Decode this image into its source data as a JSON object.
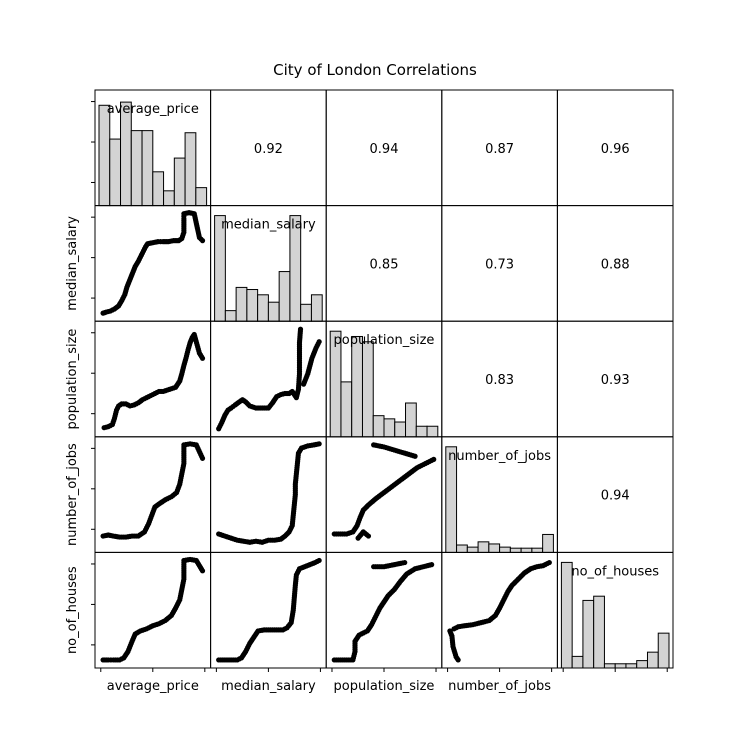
{
  "chart_data": {
    "type": "scatter_matrix",
    "title": "City of London Correlations",
    "variables": [
      "average_price",
      "median_salary",
      "population_size",
      "number_of_jobs",
      "no_of_houses"
    ],
    "correlations": [
      {
        "row": 0,
        "col": 1,
        "value": "0.92"
      },
      {
        "row": 0,
        "col": 2,
        "value": "0.94"
      },
      {
        "row": 0,
        "col": 3,
        "value": "0.87"
      },
      {
        "row": 0,
        "col": 4,
        "value": "0.96"
      },
      {
        "row": 1,
        "col": 2,
        "value": "0.85"
      },
      {
        "row": 1,
        "col": 3,
        "value": "0.73"
      },
      {
        "row": 1,
        "col": 4,
        "value": "0.88"
      },
      {
        "row": 2,
        "col": 3,
        "value": "0.83"
      },
      {
        "row": 2,
        "col": 4,
        "value": "0.93"
      },
      {
        "row": 3,
        "col": 4,
        "value": "0.94"
      }
    ],
    "histograms": {
      "average_price": [
        0.95,
        0.63,
        0.98,
        0.71,
        0.71,
        0.32,
        0.14,
        0.45,
        0.69,
        0.17
      ],
      "median_salary": [
        1.0,
        0.1,
        0.32,
        0.3,
        0.25,
        0.18,
        0.47,
        1.0,
        0.16,
        0.25
      ],
      "population_size": [
        1.0,
        0.52,
        0.95,
        0.9,
        0.2,
        0.17,
        0.14,
        0.32,
        0.1,
        0.1
      ],
      "number_of_jobs": [
        1.0,
        0.07,
        0.05,
        0.1,
        0.08,
        0.05,
        0.04,
        0.04,
        0.04,
        0.17
      ],
      "no_of_houses": [
        1.0,
        0.11,
        0.64,
        0.68,
        0.04,
        0.04,
        0.04,
        0.07,
        0.15,
        0.33
      ]
    },
    "scatter": {
      "median_salary_vs_average_price": [
        [
          0.02,
          0.02
        ],
        [
          0.05,
          0.03
        ],
        [
          0.09,
          0.04
        ],
        [
          0.13,
          0.06
        ],
        [
          0.17,
          0.09
        ],
        [
          0.2,
          0.14
        ],
        [
          0.23,
          0.2
        ],
        [
          0.25,
          0.27
        ],
        [
          0.27,
          0.32
        ],
        [
          0.29,
          0.37
        ],
        [
          0.31,
          0.42
        ],
        [
          0.33,
          0.47
        ],
        [
          0.36,
          0.52
        ],
        [
          0.39,
          0.58
        ],
        [
          0.41,
          0.62
        ],
        [
          0.43,
          0.66
        ],
        [
          0.45,
          0.69
        ],
        [
          0.5,
          0.7
        ],
        [
          0.55,
          0.71
        ],
        [
          0.6,
          0.71
        ],
        [
          0.65,
          0.71
        ],
        [
          0.7,
          0.72
        ],
        [
          0.75,
          0.72
        ],
        [
          0.78,
          0.74
        ],
        [
          0.8,
          0.8
        ],
        [
          0.8,
          0.86
        ],
        [
          0.8,
          0.93
        ],
        [
          0.8,
          0.98
        ],
        [
          0.85,
          0.99
        ],
        [
          0.9,
          0.98
        ],
        [
          0.95,
          0.75
        ],
        [
          0.98,
          0.72
        ]
      ],
      "population_size_vs_average_price": [
        [
          0.03,
          0.03
        ],
        [
          0.07,
          0.04
        ],
        [
          0.11,
          0.06
        ],
        [
          0.13,
          0.12
        ],
        [
          0.15,
          0.2
        ],
        [
          0.17,
          0.24
        ],
        [
          0.2,
          0.26
        ],
        [
          0.24,
          0.26
        ],
        [
          0.28,
          0.24
        ],
        [
          0.32,
          0.25
        ],
        [
          0.36,
          0.27
        ],
        [
          0.4,
          0.3
        ],
        [
          0.44,
          0.32
        ],
        [
          0.48,
          0.34
        ],
        [
          0.52,
          0.36
        ],
        [
          0.56,
          0.38
        ],
        [
          0.6,
          0.38
        ],
        [
          0.66,
          0.4
        ],
        [
          0.72,
          0.42
        ],
        [
          0.76,
          0.48
        ],
        [
          0.78,
          0.55
        ],
        [
          0.8,
          0.63
        ],
        [
          0.82,
          0.7
        ],
        [
          0.84,
          0.78
        ],
        [
          0.86,
          0.85
        ],
        [
          0.88,
          0.9
        ],
        [
          0.9,
          0.93
        ],
        [
          0.95,
          0.75
        ],
        [
          0.98,
          0.7
        ]
      ],
      "number_of_jobs_vs_average_price": [
        [
          0.02,
          0.1
        ],
        [
          0.07,
          0.11
        ],
        [
          0.12,
          0.1
        ],
        [
          0.18,
          0.09
        ],
        [
          0.24,
          0.09
        ],
        [
          0.3,
          0.1
        ],
        [
          0.36,
          0.1
        ],
        [
          0.42,
          0.14
        ],
        [
          0.46,
          0.22
        ],
        [
          0.49,
          0.3
        ],
        [
          0.52,
          0.38
        ],
        [
          0.56,
          0.41
        ],
        [
          0.62,
          0.45
        ],
        [
          0.68,
          0.48
        ],
        [
          0.73,
          0.52
        ],
        [
          0.76,
          0.6
        ],
        [
          0.78,
          0.7
        ],
        [
          0.8,
          0.8
        ],
        [
          0.8,
          0.9
        ],
        [
          0.8,
          0.98
        ],
        [
          0.86,
          0.99
        ],
        [
          0.92,
          0.98
        ],
        [
          0.98,
          0.85
        ]
      ],
      "no_of_houses_vs_average_price": [
        [
          0.02,
          0.02
        ],
        [
          0.07,
          0.02
        ],
        [
          0.12,
          0.02
        ],
        [
          0.18,
          0.02
        ],
        [
          0.22,
          0.04
        ],
        [
          0.26,
          0.1
        ],
        [
          0.3,
          0.2
        ],
        [
          0.33,
          0.27
        ],
        [
          0.38,
          0.3
        ],
        [
          0.44,
          0.32
        ],
        [
          0.5,
          0.35
        ],
        [
          0.56,
          0.37
        ],
        [
          0.62,
          0.4
        ],
        [
          0.68,
          0.45
        ],
        [
          0.72,
          0.52
        ],
        [
          0.76,
          0.6
        ],
        [
          0.78,
          0.7
        ],
        [
          0.8,
          0.8
        ],
        [
          0.8,
          0.9
        ],
        [
          0.8,
          0.98
        ],
        [
          0.86,
          0.99
        ],
        [
          0.92,
          0.98
        ],
        [
          0.98,
          0.88
        ]
      ],
      "population_size_vs_median_salary": [
        [
          0.02,
          0.02
        ],
        [
          0.05,
          0.08
        ],
        [
          0.08,
          0.15
        ],
        [
          0.11,
          0.2
        ],
        [
          0.14,
          0.22
        ],
        [
          0.18,
          0.25
        ],
        [
          0.22,
          0.28
        ],
        [
          0.25,
          0.3
        ],
        [
          0.28,
          0.28
        ],
        [
          0.32,
          0.24
        ],
        [
          0.38,
          0.22
        ],
        [
          0.44,
          0.22
        ],
        [
          0.5,
          0.22
        ],
        [
          0.54,
          0.27
        ],
        [
          0.58,
          0.33
        ],
        [
          0.62,
          0.35
        ],
        [
          0.66,
          0.36
        ],
        [
          0.7,
          0.36
        ],
        [
          0.73,
          0.38
        ],
        [
          0.75,
          0.35
        ],
        [
          0.77,
          0.32
        ],
        [
          0.79,
          0.4
        ],
        [
          0.8,
          0.55
        ],
        [
          0.8,
          0.7
        ],
        [
          0.8,
          0.85
        ],
        [
          0.81,
          0.98
        ],
        [
          0.84,
          0.45
        ],
        [
          0.88,
          0.55
        ],
        [
          0.92,
          0.7
        ],
        [
          0.96,
          0.8
        ],
        [
          0.99,
          0.86
        ]
      ],
      "number_of_jobs_vs_median_salary": [
        [
          0.02,
          0.12
        ],
        [
          0.08,
          0.1
        ],
        [
          0.14,
          0.08
        ],
        [
          0.2,
          0.06
        ],
        [
          0.26,
          0.05
        ],
        [
          0.32,
          0.04
        ],
        [
          0.38,
          0.05
        ],
        [
          0.44,
          0.04
        ],
        [
          0.5,
          0.06
        ],
        [
          0.56,
          0.06
        ],
        [
          0.62,
          0.07
        ],
        [
          0.66,
          0.1
        ],
        [
          0.7,
          0.14
        ],
        [
          0.73,
          0.2
        ],
        [
          0.74,
          0.3
        ],
        [
          0.75,
          0.4
        ],
        [
          0.76,
          0.5
        ],
        [
          0.76,
          0.6
        ],
        [
          0.77,
          0.7
        ],
        [
          0.78,
          0.8
        ],
        [
          0.79,
          0.9
        ],
        [
          0.82,
          0.95
        ],
        [
          0.88,
          0.97
        ],
        [
          0.94,
          0.98
        ],
        [
          0.99,
          0.99
        ]
      ],
      "no_of_houses_vs_median_salary": [
        [
          0.02,
          0.02
        ],
        [
          0.08,
          0.02
        ],
        [
          0.14,
          0.02
        ],
        [
          0.2,
          0.02
        ],
        [
          0.24,
          0.04
        ],
        [
          0.28,
          0.1
        ],
        [
          0.32,
          0.18
        ],
        [
          0.36,
          0.24
        ],
        [
          0.4,
          0.3
        ],
        [
          0.46,
          0.31
        ],
        [
          0.52,
          0.31
        ],
        [
          0.58,
          0.31
        ],
        [
          0.64,
          0.31
        ],
        [
          0.68,
          0.33
        ],
        [
          0.72,
          0.38
        ],
        [
          0.74,
          0.5
        ],
        [
          0.75,
          0.62
        ],
        [
          0.76,
          0.74
        ],
        [
          0.77,
          0.84
        ],
        [
          0.8,
          0.9
        ],
        [
          0.85,
          0.92
        ],
        [
          0.9,
          0.94
        ],
        [
          0.95,
          0.96
        ],
        [
          0.99,
          0.98
        ]
      ],
      "number_of_jobs_vs_population_size": [
        [
          0.02,
          0.12
        ],
        [
          0.08,
          0.12
        ],
        [
          0.14,
          0.12
        ],
        [
          0.2,
          0.14
        ],
        [
          0.24,
          0.2
        ],
        [
          0.27,
          0.28
        ],
        [
          0.3,
          0.35
        ],
        [
          0.35,
          0.4
        ],
        [
          0.42,
          0.46
        ],
        [
          0.5,
          0.52
        ],
        [
          0.58,
          0.58
        ],
        [
          0.66,
          0.64
        ],
        [
          0.74,
          0.7
        ],
        [
          0.82,
          0.76
        ],
        [
          0.9,
          0.8
        ],
        [
          0.98,
          0.84
        ],
        [
          0.4,
          0.98
        ],
        [
          0.5,
          0.96
        ],
        [
          0.6,
          0.93
        ],
        [
          0.7,
          0.9
        ],
        [
          0.8,
          0.87
        ],
        [
          0.35,
          0.1
        ],
        [
          0.3,
          0.14
        ],
        [
          0.25,
          0.08
        ]
      ],
      "no_of_houses_vs_population_size": [
        [
          0.02,
          0.02
        ],
        [
          0.08,
          0.02
        ],
        [
          0.14,
          0.02
        ],
        [
          0.2,
          0.02
        ],
        [
          0.22,
          0.1
        ],
        [
          0.22,
          0.2
        ],
        [
          0.26,
          0.26
        ],
        [
          0.3,
          0.28
        ],
        [
          0.34,
          0.3
        ],
        [
          0.38,
          0.36
        ],
        [
          0.42,
          0.44
        ],
        [
          0.46,
          0.52
        ],
        [
          0.5,
          0.58
        ],
        [
          0.54,
          0.64
        ],
        [
          0.6,
          0.7
        ],
        [
          0.66,
          0.78
        ],
        [
          0.72,
          0.85
        ],
        [
          0.8,
          0.9
        ],
        [
          0.88,
          0.92
        ],
        [
          0.96,
          0.94
        ],
        [
          0.4,
          0.92
        ],
        [
          0.5,
          0.92
        ],
        [
          0.6,
          0.94
        ],
        [
          0.7,
          0.96
        ]
      ],
      "no_of_houses_vs_number_of_jobs": [
        [
          0.02,
          0.3
        ],
        [
          0.04,
          0.25
        ],
        [
          0.05,
          0.15
        ],
        [
          0.08,
          0.05
        ],
        [
          0.1,
          0.02
        ],
        [
          0.06,
          0.32
        ],
        [
          0.1,
          0.34
        ],
        [
          0.16,
          0.35
        ],
        [
          0.24,
          0.36
        ],
        [
          0.32,
          0.38
        ],
        [
          0.4,
          0.4
        ],
        [
          0.46,
          0.45
        ],
        [
          0.5,
          0.52
        ],
        [
          0.54,
          0.6
        ],
        [
          0.58,
          0.68
        ],
        [
          0.62,
          0.74
        ],
        [
          0.68,
          0.8
        ],
        [
          0.74,
          0.86
        ],
        [
          0.8,
          0.9
        ],
        [
          0.86,
          0.92
        ],
        [
          0.92,
          0.93
        ],
        [
          0.98,
          0.96
        ]
      ]
    }
  }
}
